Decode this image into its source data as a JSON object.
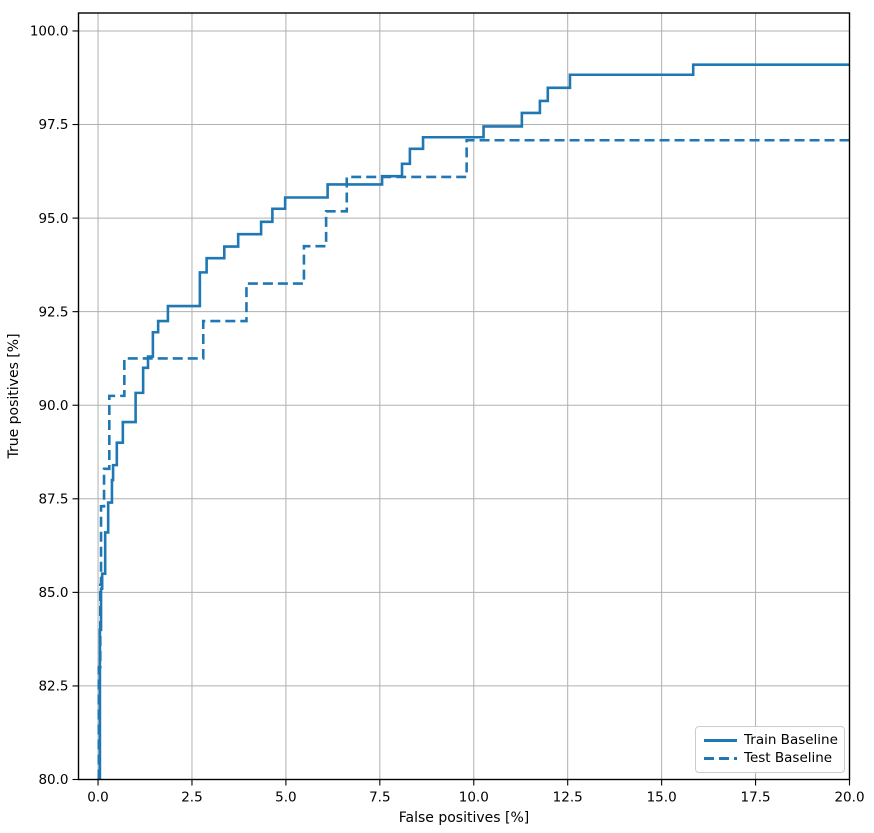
{
  "chart_data": {
    "type": "line",
    "title": "",
    "xlabel": "False positives [%]",
    "ylabel": "True positives [%]",
    "xlim": [
      -0.52,
      20
    ],
    "ylim": [
      80,
      100.48
    ],
    "xticks": [
      0.0,
      2.5,
      5.0,
      7.5,
      10.0,
      12.5,
      15.0,
      17.5,
      20.0
    ],
    "xtick_labels": [
      "0.0",
      "2.5",
      "5.0",
      "7.5",
      "10.0",
      "12.5",
      "15.0",
      "17.5",
      "20.0"
    ],
    "yticks": [
      80.0,
      82.5,
      85.0,
      87.5,
      90.0,
      92.5,
      95.0,
      97.5,
      100.0
    ],
    "ytick_labels": [
      "80.0",
      "82.5",
      "85.0",
      "87.5",
      "90.0",
      "92.5",
      "95.0",
      "97.5",
      "100.0"
    ],
    "grid": true,
    "grid_color": "#b0b0b0",
    "line_color": "#1f77b4",
    "legend_position": "lower right",
    "series": [
      {
        "name": "Train Baseline",
        "style": "solid",
        "points": [
          [
            0.05,
            80.0
          ],
          [
            0.05,
            84.0
          ],
          [
            0.08,
            84.0
          ],
          [
            0.08,
            85.1
          ],
          [
            0.11,
            85.1
          ],
          [
            0.11,
            85.5
          ],
          [
            0.19,
            85.5
          ],
          [
            0.19,
            86.6
          ],
          [
            0.27,
            86.6
          ],
          [
            0.27,
            87.4
          ],
          [
            0.37,
            87.4
          ],
          [
            0.37,
            88.0
          ],
          [
            0.4,
            88.0
          ],
          [
            0.4,
            88.4
          ],
          [
            0.5,
            88.4
          ],
          [
            0.5,
            89.0
          ],
          [
            0.66,
            89.0
          ],
          [
            0.66,
            89.55
          ],
          [
            1.0,
            89.55
          ],
          [
            1.0,
            90.33
          ],
          [
            1.2,
            90.33
          ],
          [
            1.2,
            91.0
          ],
          [
            1.33,
            91.0
          ],
          [
            1.33,
            91.3
          ],
          [
            1.46,
            91.3
          ],
          [
            1.46,
            91.95
          ],
          [
            1.6,
            91.95
          ],
          [
            1.6,
            92.25
          ],
          [
            1.86,
            92.25
          ],
          [
            1.86,
            92.65
          ],
          [
            2.71,
            92.65
          ],
          [
            2.71,
            93.55
          ],
          [
            2.89,
            93.55
          ],
          [
            2.89,
            93.93
          ],
          [
            3.36,
            93.93
          ],
          [
            3.36,
            94.24
          ],
          [
            3.73,
            94.24
          ],
          [
            3.73,
            94.57
          ],
          [
            4.34,
            94.57
          ],
          [
            4.34,
            94.9
          ],
          [
            4.64,
            94.9
          ],
          [
            4.64,
            95.25
          ],
          [
            4.98,
            95.25
          ],
          [
            4.98,
            95.55
          ],
          [
            6.11,
            95.55
          ],
          [
            6.11,
            95.9
          ],
          [
            7.56,
            95.9
          ],
          [
            7.56,
            96.12
          ],
          [
            8.09,
            96.12
          ],
          [
            8.09,
            96.45
          ],
          [
            8.3,
            96.45
          ],
          [
            8.3,
            96.85
          ],
          [
            8.65,
            96.85
          ],
          [
            8.65,
            97.16
          ],
          [
            10.26,
            97.16
          ],
          [
            10.26,
            97.45
          ],
          [
            11.28,
            97.45
          ],
          [
            11.28,
            97.81
          ],
          [
            11.76,
            97.81
          ],
          [
            11.76,
            98.13
          ],
          [
            11.97,
            98.13
          ],
          [
            11.97,
            98.48
          ],
          [
            12.56,
            98.48
          ],
          [
            12.56,
            98.83
          ],
          [
            15.84,
            98.83
          ],
          [
            15.84,
            99.1
          ],
          [
            20.0,
            99.1
          ]
        ]
      },
      {
        "name": "Test Baseline",
        "style": "dashed",
        "points": [
          [
            0.02,
            80.0
          ],
          [
            0.02,
            83.0
          ],
          [
            0.06,
            83.0
          ],
          [
            0.06,
            85.2
          ],
          [
            0.08,
            85.2
          ],
          [
            0.08,
            87.3
          ],
          [
            0.16,
            87.3
          ],
          [
            0.16,
            88.3
          ],
          [
            0.3,
            88.3
          ],
          [
            0.3,
            90.25
          ],
          [
            0.7,
            90.25
          ],
          [
            0.7,
            91.25
          ],
          [
            2.8,
            91.25
          ],
          [
            2.8,
            92.25
          ],
          [
            3.95,
            92.25
          ],
          [
            3.95,
            93.25
          ],
          [
            5.48,
            93.25
          ],
          [
            5.48,
            94.25
          ],
          [
            6.07,
            94.25
          ],
          [
            6.07,
            95.18
          ],
          [
            6.62,
            95.18
          ],
          [
            6.62,
            96.1
          ],
          [
            9.81,
            96.1
          ],
          [
            9.81,
            97.08
          ],
          [
            20.0,
            97.08
          ]
        ]
      }
    ]
  },
  "legend": {
    "train_label": "Train Baseline",
    "test_label": "Test Baseline"
  }
}
